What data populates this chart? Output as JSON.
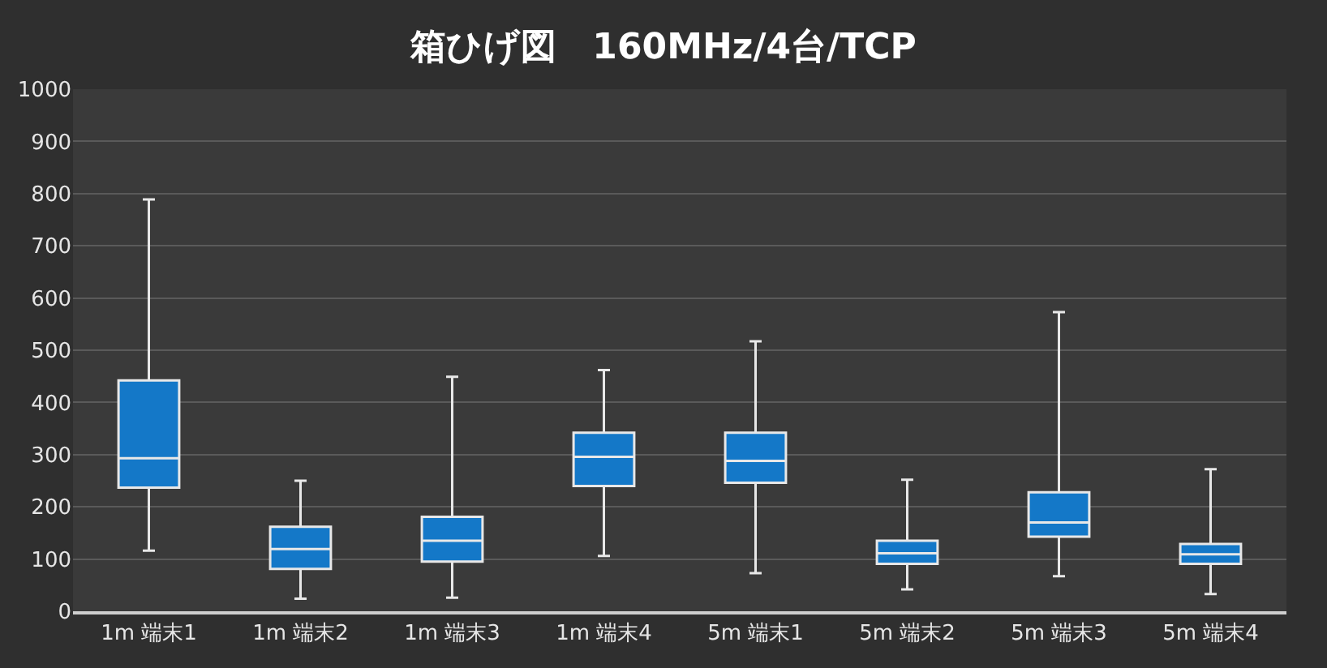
{
  "chart_data": {
    "type": "box",
    "title": "箱ひげ図　160MHz/4台/TCP",
    "categories": [
      "1m 端末1",
      "1m 端末2",
      "1m 端末3",
      "1m 端末4",
      "5m 端末1",
      "5m 端末2",
      "5m 端末3",
      "5m 端末4"
    ],
    "color": "#1478c8",
    "boxes": [
      {
        "low": 116,
        "q1": 237,
        "median": 293,
        "q3": 442,
        "high": 789
      },
      {
        "low": 24,
        "q1": 81,
        "median": 119,
        "q3": 162,
        "high": 250
      },
      {
        "low": 26,
        "q1": 95,
        "median": 135,
        "q3": 181,
        "high": 449
      },
      {
        "low": 106,
        "q1": 240,
        "median": 296,
        "q3": 342,
        "high": 462
      },
      {
        "low": 73,
        "q1": 246,
        "median": 288,
        "q3": 342,
        "high": 517
      },
      {
        "low": 42,
        "q1": 91,
        "median": 111,
        "q3": 135,
        "high": 252
      },
      {
        "low": 67,
        "q1": 143,
        "median": 170,
        "q3": 228,
        "high": 573
      },
      {
        "low": 33,
        "q1": 91,
        "median": 109,
        "q3": 129,
        "high": 272
      }
    ],
    "ylim": [
      0,
      1000
    ],
    "yticks": [
      0,
      100,
      200,
      300,
      400,
      500,
      600,
      700,
      800,
      900,
      1000
    ],
    "grid": "y"
  }
}
